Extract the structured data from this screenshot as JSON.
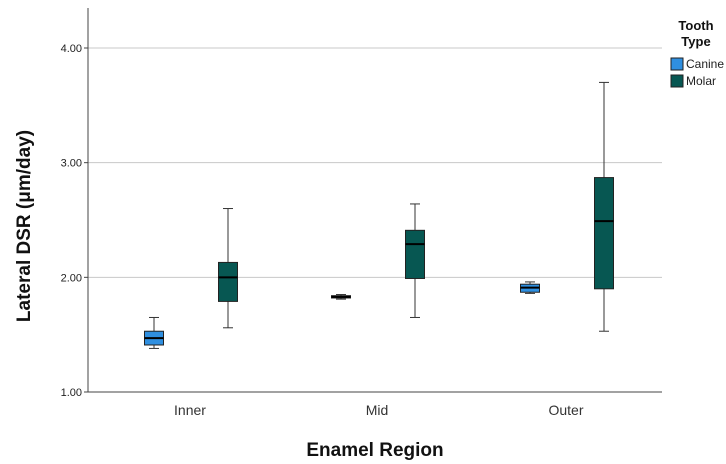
{
  "chart_data": {
    "type": "boxplot",
    "title": "",
    "xlabel": "Enamel Region",
    "ylabel": "Lateral DSR (μm/day)",
    "ylim": [
      1.0,
      4.3
    ],
    "yticks": [
      1.0,
      2.0,
      3.0,
      4.0
    ],
    "ytick_labels": [
      "1.00",
      "2.00",
      "3.00",
      "4.00"
    ],
    "grid": true,
    "legend_position": "top-right",
    "legend_title_lines": [
      "Tooth",
      "Type"
    ],
    "categories": [
      "Inner",
      "Mid",
      "Outer"
    ],
    "series": [
      {
        "name": "Canine",
        "color": "#2f8fe0",
        "boxes": [
          {
            "min": 1.38,
            "q1": 1.41,
            "median": 1.47,
            "q3": 1.53,
            "max": 1.65
          },
          {
            "min": 1.81,
            "q1": 1.82,
            "median": 1.83,
            "q3": 1.84,
            "max": 1.85
          },
          {
            "min": 1.86,
            "q1": 1.87,
            "median": 1.91,
            "q3": 1.94,
            "max": 1.96
          }
        ]
      },
      {
        "name": "Molar",
        "color": "#075752",
        "boxes": [
          {
            "min": 1.56,
            "q1": 1.79,
            "median": 2.0,
            "q3": 2.13,
            "max": 2.6
          },
          {
            "min": 1.65,
            "q1": 1.99,
            "median": 2.29,
            "q3": 2.41,
            "max": 2.64
          },
          {
            "min": 1.53,
            "q1": 1.9,
            "median": 2.49,
            "q3": 2.87,
            "max": 3.7
          }
        ]
      }
    ]
  }
}
